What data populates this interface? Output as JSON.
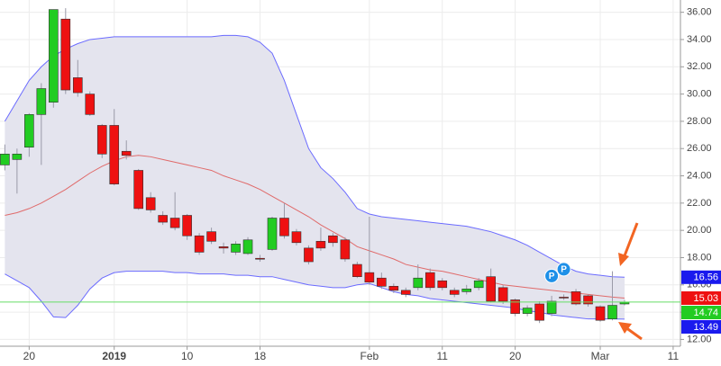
{
  "chart_data": {
    "type": "candlestick",
    "x": [
      0,
      1,
      2,
      3,
      4,
      5,
      6,
      7,
      8,
      9,
      10,
      11,
      12,
      13,
      14,
      15,
      16,
      17,
      18,
      19,
      20,
      21,
      22,
      23,
      24,
      25,
      26,
      27,
      28,
      29,
      30,
      31,
      32,
      33,
      34,
      35,
      36,
      37,
      38,
      39,
      40,
      41,
      42,
      43,
      44,
      45,
      46,
      47,
      48,
      49,
      50,
      51
    ],
    "open": [
      24.8,
      25.2,
      26.1,
      28.5,
      29.4,
      35.5,
      31.2,
      30.0,
      27.7,
      27.7,
      25.8,
      24.4,
      22.4,
      21.1,
      20.9,
      21.1,
      19.6,
      19.9,
      18.8,
      18.4,
      18.3,
      17.95,
      18.6,
      20.9,
      19.9,
      18.7,
      19.2,
      19.6,
      19.3,
      17.5,
      16.9,
      16.5,
      15.9,
      15.6,
      15.8,
      16.9,
      16.3,
      15.6,
      15.5,
      15.8,
      16.6,
      15.8,
      14.9,
      13.9,
      14.6,
      13.9,
      15.1,
      15.5,
      15.2,
      14.4,
      13.5,
      14.6
    ],
    "high": [
      26.3,
      26.0,
      28.6,
      30.8,
      36.2,
      36.3,
      32.5,
      30.2,
      27.8,
      28.9,
      26.6,
      24.5,
      22.8,
      21.4,
      22.8,
      21.2,
      19.8,
      20.2,
      19.1,
      19.2,
      19.5,
      18.2,
      21.0,
      22.0,
      20.1,
      18.9,
      20.2,
      19.8,
      19.5,
      17.7,
      21.0,
      16.9,
      16.1,
      15.8,
      17.5,
      17.2,
      16.5,
      15.8,
      16.0,
      16.5,
      17.2,
      16.0,
      15.0,
      14.5,
      14.8,
      15.2,
      15.3,
      15.7,
      15.3,
      14.5,
      17.0,
      14.9
    ],
    "low": [
      24.4,
      22.7,
      25.4,
      24.8,
      29.0,
      30.0,
      29.8,
      28.4,
      25.3,
      23.3,
      25.2,
      21.5,
      21.3,
      20.4,
      20.0,
      19.3,
      18.2,
      19.0,
      18.3,
      18.2,
      18.2,
      17.7,
      18.5,
      19.4,
      18.9,
      17.5,
      18.5,
      18.8,
      17.7,
      16.5,
      16.0,
      15.7,
      15.4,
      15.1,
      15.6,
      15.6,
      15.6,
      15.1,
      15.3,
      15.6,
      14.7,
      14.6,
      13.7,
      13.7,
      13.2,
      13.7,
      14.9,
      14.5,
      14.4,
      13.3,
      13.4,
      14.5
    ],
    "close": [
      25.6,
      25.6,
      28.5,
      30.4,
      36.2,
      30.3,
      30.1,
      28.5,
      25.6,
      23.4,
      25.5,
      21.6,
      21.5,
      20.6,
      20.2,
      19.6,
      18.4,
      19.2,
      18.7,
      19.0,
      19.3,
      17.9,
      20.9,
      19.6,
      19.1,
      17.7,
      18.7,
      19.1,
      17.9,
      16.6,
      16.2,
      15.9,
      15.6,
      15.3,
      16.5,
      15.8,
      15.8,
      15.3,
      15.7,
      16.3,
      14.8,
      14.8,
      13.9,
      14.3,
      13.4,
      14.8,
      15.05,
      14.6,
      14.6,
      13.4,
      14.5,
      14.74
    ],
    "up_color": "#22cc22",
    "down_color": "#ee1111",
    "bands": [
      {
        "color": "#6b6bff",
        "values": [
          28.0,
          29.5,
          31.0,
          32.0,
          32.8,
          33.3,
          33.7,
          34.0,
          34.1,
          34.2,
          34.2,
          34.2,
          34.2,
          34.2,
          34.2,
          34.2,
          34.2,
          34.2,
          34.3,
          34.3,
          34.2,
          33.8,
          33.0,
          31.0,
          28.5,
          26.0,
          24.6,
          23.8,
          22.8,
          21.6,
          21.2,
          21.0,
          20.9,
          20.8,
          20.7,
          20.6,
          20.5,
          20.4,
          20.3,
          20.1,
          19.9,
          19.6,
          19.3,
          18.9,
          18.4,
          17.9,
          17.4,
          17.0,
          16.8,
          16.7,
          16.6,
          16.56
        ]
      },
      {
        "color": "#e06a6a",
        "values": [
          21.1,
          21.3,
          21.6,
          22.0,
          22.5,
          23.0,
          23.6,
          24.2,
          24.7,
          25.1,
          25.4,
          25.5,
          25.4,
          25.2,
          25.0,
          24.8,
          24.6,
          24.4,
          24.0,
          23.7,
          23.4,
          23.0,
          22.5,
          22.0,
          21.5,
          21.0,
          20.4,
          19.9,
          19.4,
          18.8,
          18.5,
          18.2,
          17.9,
          17.5,
          17.3,
          17.1,
          17.0,
          16.8,
          16.6,
          16.4,
          16.2,
          16.0,
          15.9,
          15.8,
          15.7,
          15.6,
          15.5,
          15.4,
          15.3,
          15.2,
          15.1,
          15.03
        ]
      },
      {
        "color": "#6b6bff",
        "values": [
          16.8,
          16.3,
          15.8,
          14.8,
          13.65,
          13.6,
          14.5,
          15.7,
          16.5,
          16.9,
          17.0,
          17.0,
          17.0,
          17.0,
          16.9,
          16.9,
          16.8,
          16.8,
          16.8,
          16.7,
          16.7,
          16.6,
          16.6,
          16.4,
          16.2,
          16.0,
          15.9,
          15.8,
          15.8,
          16.0,
          16.1,
          15.8,
          15.5,
          15.3,
          15.2,
          15.0,
          14.9,
          14.8,
          14.7,
          14.6,
          14.5,
          14.4,
          14.3,
          14.1,
          14.0,
          13.8,
          13.7,
          13.6,
          13.5,
          13.5,
          13.5,
          13.49
        ]
      }
    ],
    "band_fill": "#e4e4ee",
    "price_markers": [
      {
        "value": 16.56,
        "color": "#1a1aee"
      },
      {
        "value": 15.03,
        "color": "#ee1111"
      },
      {
        "value": 14.74,
        "color": "#22cc22"
      },
      {
        "value": 13.49,
        "color": "#1a1aee"
      }
    ],
    "last_line_color": "#66dd66",
    "events": [
      {
        "x": 45,
        "label": "P"
      },
      {
        "x": 46,
        "label": "P"
      }
    ],
    "xlim": [
      -0.4,
      55.6
    ],
    "xticks": [
      {
        "value": 2,
        "label": "20"
      },
      {
        "value": 9,
        "label": "2019"
      },
      {
        "value": 15,
        "label": "10"
      },
      {
        "value": 21,
        "label": "18"
      },
      {
        "value": 30,
        "label": "Feb"
      },
      {
        "value": 36,
        "label": "11"
      },
      {
        "value": 42,
        "label": "20"
      },
      {
        "value": 49,
        "label": "Mar"
      },
      {
        "value": 55,
        "label": "11"
      }
    ],
    "ylim": [
      11.5,
      36.9
    ],
    "yticks": [
      {
        "value": 12,
        "label": "12.00"
      },
      {
        "value": 14,
        "label": "14.00"
      },
      {
        "value": 16,
        "label": "16.00"
      },
      {
        "value": 18,
        "label": "18.00"
      },
      {
        "value": 20,
        "label": "20.00"
      },
      {
        "value": 22,
        "label": "22.00"
      },
      {
        "value": 24,
        "label": "24.00"
      },
      {
        "value": 26,
        "label": "26.00"
      },
      {
        "value": 28,
        "label": "28.00"
      },
      {
        "value": 30,
        "label": "30.00"
      },
      {
        "value": 32,
        "label": "32.00"
      },
      {
        "value": 34,
        "label": "34.00"
      },
      {
        "value": 36,
        "label": "36.00"
      }
    ],
    "grid": true
  }
}
